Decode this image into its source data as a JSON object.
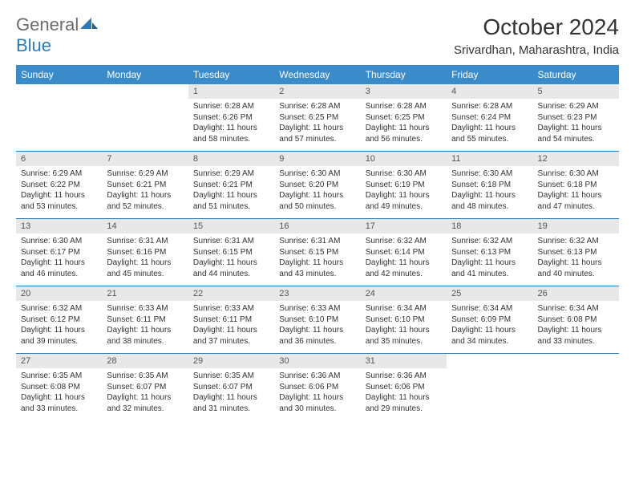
{
  "brand": {
    "name_part1": "General",
    "name_part2": "Blue",
    "accent_color": "#2b7bbf",
    "gray_color": "#6b6b6b"
  },
  "header": {
    "title": "October 2024",
    "location": "Srivardhan, Maharashtra, India"
  },
  "theme": {
    "header_bg": "#3a8bc9",
    "header_text": "#ffffff",
    "daynum_bg": "#e8e8e8",
    "text_color": "#333333",
    "separator_color": "#2b7bbf",
    "page_bg": "#ffffff",
    "font_family": "Arial, Helvetica, sans-serif",
    "title_fontsize": 28,
    "location_fontsize": 15,
    "th_fontsize": 12,
    "daynum_fontsize": 11,
    "cell_fontsize": 10
  },
  "days_of_week": [
    "Sunday",
    "Monday",
    "Tuesday",
    "Wednesday",
    "Thursday",
    "Friday",
    "Saturday"
  ],
  "weeks": [
    [
      null,
      null,
      {
        "n": "1",
        "sr": "6:28 AM",
        "ss": "6:26 PM",
        "dl": "11 hours and 58 minutes."
      },
      {
        "n": "2",
        "sr": "6:28 AM",
        "ss": "6:25 PM",
        "dl": "11 hours and 57 minutes."
      },
      {
        "n": "3",
        "sr": "6:28 AM",
        "ss": "6:25 PM",
        "dl": "11 hours and 56 minutes."
      },
      {
        "n": "4",
        "sr": "6:28 AM",
        "ss": "6:24 PM",
        "dl": "11 hours and 55 minutes."
      },
      {
        "n": "5",
        "sr": "6:29 AM",
        "ss": "6:23 PM",
        "dl": "11 hours and 54 minutes."
      }
    ],
    [
      {
        "n": "6",
        "sr": "6:29 AM",
        "ss": "6:22 PM",
        "dl": "11 hours and 53 minutes."
      },
      {
        "n": "7",
        "sr": "6:29 AM",
        "ss": "6:21 PM",
        "dl": "11 hours and 52 minutes."
      },
      {
        "n": "8",
        "sr": "6:29 AM",
        "ss": "6:21 PM",
        "dl": "11 hours and 51 minutes."
      },
      {
        "n": "9",
        "sr": "6:30 AM",
        "ss": "6:20 PM",
        "dl": "11 hours and 50 minutes."
      },
      {
        "n": "10",
        "sr": "6:30 AM",
        "ss": "6:19 PM",
        "dl": "11 hours and 49 minutes."
      },
      {
        "n": "11",
        "sr": "6:30 AM",
        "ss": "6:18 PM",
        "dl": "11 hours and 48 minutes."
      },
      {
        "n": "12",
        "sr": "6:30 AM",
        "ss": "6:18 PM",
        "dl": "11 hours and 47 minutes."
      }
    ],
    [
      {
        "n": "13",
        "sr": "6:30 AM",
        "ss": "6:17 PM",
        "dl": "11 hours and 46 minutes."
      },
      {
        "n": "14",
        "sr": "6:31 AM",
        "ss": "6:16 PM",
        "dl": "11 hours and 45 minutes."
      },
      {
        "n": "15",
        "sr": "6:31 AM",
        "ss": "6:15 PM",
        "dl": "11 hours and 44 minutes."
      },
      {
        "n": "16",
        "sr": "6:31 AM",
        "ss": "6:15 PM",
        "dl": "11 hours and 43 minutes."
      },
      {
        "n": "17",
        "sr": "6:32 AM",
        "ss": "6:14 PM",
        "dl": "11 hours and 42 minutes."
      },
      {
        "n": "18",
        "sr": "6:32 AM",
        "ss": "6:13 PM",
        "dl": "11 hours and 41 minutes."
      },
      {
        "n": "19",
        "sr": "6:32 AM",
        "ss": "6:13 PM",
        "dl": "11 hours and 40 minutes."
      }
    ],
    [
      {
        "n": "20",
        "sr": "6:32 AM",
        "ss": "6:12 PM",
        "dl": "11 hours and 39 minutes."
      },
      {
        "n": "21",
        "sr": "6:33 AM",
        "ss": "6:11 PM",
        "dl": "11 hours and 38 minutes."
      },
      {
        "n": "22",
        "sr": "6:33 AM",
        "ss": "6:11 PM",
        "dl": "11 hours and 37 minutes."
      },
      {
        "n": "23",
        "sr": "6:33 AM",
        "ss": "6:10 PM",
        "dl": "11 hours and 36 minutes."
      },
      {
        "n": "24",
        "sr": "6:34 AM",
        "ss": "6:10 PM",
        "dl": "11 hours and 35 minutes."
      },
      {
        "n": "25",
        "sr": "6:34 AM",
        "ss": "6:09 PM",
        "dl": "11 hours and 34 minutes."
      },
      {
        "n": "26",
        "sr": "6:34 AM",
        "ss": "6:08 PM",
        "dl": "11 hours and 33 minutes."
      }
    ],
    [
      {
        "n": "27",
        "sr": "6:35 AM",
        "ss": "6:08 PM",
        "dl": "11 hours and 33 minutes."
      },
      {
        "n": "28",
        "sr": "6:35 AM",
        "ss": "6:07 PM",
        "dl": "11 hours and 32 minutes."
      },
      {
        "n": "29",
        "sr": "6:35 AM",
        "ss": "6:07 PM",
        "dl": "11 hours and 31 minutes."
      },
      {
        "n": "30",
        "sr": "6:36 AM",
        "ss": "6:06 PM",
        "dl": "11 hours and 30 minutes."
      },
      {
        "n": "31",
        "sr": "6:36 AM",
        "ss": "6:06 PM",
        "dl": "11 hours and 29 minutes."
      },
      null,
      null
    ]
  ],
  "labels": {
    "sunrise": "Sunrise:",
    "sunset": "Sunset:",
    "daylight": "Daylight:"
  }
}
